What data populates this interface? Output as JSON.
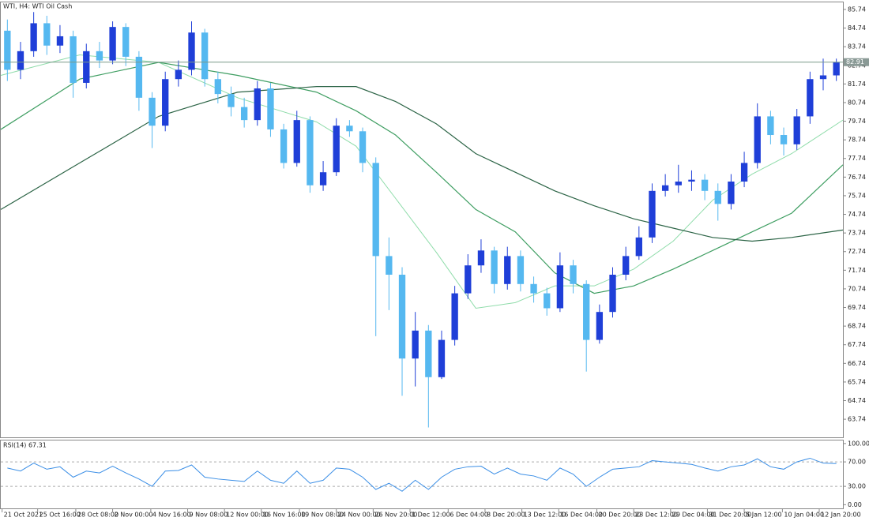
{
  "chart_data": [
    {
      "type": "candlestick",
      "title": "WTI, H4:  WTI Oil Cash",
      "open": [
        84.6,
        82.5,
        83.5,
        85.0,
        83.8,
        84.3,
        81.8,
        83.5,
        83.0,
        84.8,
        83.2,
        81.0,
        79.5,
        82.0,
        82.5,
        84.5,
        82.0,
        81.2,
        80.5,
        79.8,
        81.5,
        79.3,
        77.5,
        79.8,
        76.3,
        77.0,
        79.5,
        79.2,
        77.5,
        72.5,
        71.5,
        67.0,
        68.5,
        66.0,
        68.0,
        70.5,
        72.0,
        72.8,
        71.0,
        72.5,
        71.0,
        70.5,
        69.7,
        72.0,
        71.0,
        68.0,
        69.5,
        71.5,
        72.5,
        73.5,
        76.0,
        76.3,
        76.5,
        76.6,
        76.0,
        75.3,
        76.5,
        77.5,
        80.0,
        79.0,
        78.5,
        80.0,
        82.0,
        82.2
      ],
      "high": [
        85.2,
        84.0,
        85.6,
        85.4,
        84.9,
        84.6,
        83.9,
        84.0,
        85.1,
        85.0,
        83.5,
        81.3,
        82.4,
        83.0,
        85.1,
        84.7,
        82.4,
        81.6,
        81.0,
        81.9,
        81.8,
        79.6,
        80.3,
        80.0,
        77.6,
        79.9,
        79.8,
        79.4,
        77.8,
        73.5,
        71.9,
        69.5,
        68.8,
        68.5,
        70.9,
        72.6,
        73.4,
        73.0,
        73.0,
        72.8,
        71.4,
        70.8,
        72.7,
        72.3,
        71.2,
        69.9,
        71.9,
        73.0,
        74.1,
        76.4,
        76.9,
        77.4,
        77.1,
        76.9,
        76.4,
        76.9,
        78.1,
        80.7,
        80.3,
        79.4,
        80.4,
        82.4,
        83.1,
        83.1
      ],
      "low": [
        81.9,
        82.0,
        83.2,
        83.3,
        83.4,
        81.0,
        81.5,
        82.6,
        82.8,
        82.7,
        80.3,
        78.3,
        79.2,
        81.6,
        82.2,
        81.6,
        80.7,
        80.0,
        79.4,
        79.5,
        78.9,
        77.2,
        77.3,
        75.9,
        76.0,
        76.8,
        78.9,
        77.0,
        68.2,
        69.6,
        65.0,
        65.5,
        63.3,
        65.9,
        67.7,
        70.2,
        71.6,
        70.5,
        70.7,
        70.6,
        70.0,
        69.3,
        69.5,
        70.5,
        66.3,
        67.8,
        69.2,
        71.2,
        72.3,
        73.2,
        75.7,
        75.9,
        76.0,
        75.5,
        74.4,
        75.0,
        76.2,
        77.2,
        78.5,
        77.9,
        78.2,
        79.6,
        81.4,
        81.9
      ],
      "close": [
        82.5,
        83.5,
        85.0,
        83.8,
        84.3,
        81.8,
        83.5,
        83.0,
        84.8,
        83.2,
        81.0,
        79.5,
        82.0,
        82.5,
        84.5,
        82.0,
        81.2,
        80.5,
        79.8,
        81.5,
        79.3,
        77.5,
        79.8,
        76.3,
        77.0,
        79.5,
        79.2,
        77.5,
        72.5,
        71.5,
        67.0,
        68.5,
        66.0,
        68.0,
        70.5,
        72.0,
        72.8,
        71.0,
        72.5,
        71.0,
        70.5,
        69.7,
        72.0,
        71.0,
        68.0,
        69.5,
        71.5,
        72.5,
        73.5,
        76.0,
        76.3,
        76.5,
        76.6,
        76.0,
        75.3,
        76.5,
        77.5,
        80.0,
        79.0,
        78.5,
        80.0,
        82.0,
        82.2,
        82.9
      ],
      "up_color": "#1f3fd8",
      "down_color": "#55b8f0",
      "series": [
        {
          "color": "#8fdcaa",
          "x": [
            0,
            6,
            12,
            18,
            24,
            27,
            30,
            33.1,
            36.1,
            39.1,
            42.1,
            45.1,
            48.1,
            51.1,
            54.1,
            57.1,
            60.1,
            64
          ],
          "values": [
            82.2,
            83.3,
            82.9,
            81.0,
            79.7,
            78.4,
            75.6,
            72.7,
            69.7,
            70.0,
            70.9,
            70.9,
            71.8,
            73.3,
            75.5,
            76.9,
            78.0,
            79.8
          ]
        },
        {
          "color": "#3f9e62",
          "x": [
            0,
            6,
            12,
            18,
            24,
            27,
            30,
            33.1,
            36.1,
            39.1,
            42.1,
            45.1,
            48.1,
            51.1,
            54.1,
            57.1,
            60.1,
            64
          ],
          "values": [
            79.3,
            82.0,
            82.9,
            82.2,
            81.3,
            80.3,
            79.0,
            77.0,
            75.0,
            73.8,
            71.6,
            70.5,
            70.9,
            71.8,
            72.8,
            73.8,
            74.8,
            77.4
          ]
        },
        {
          "color": "#2c6446",
          "x": [
            0,
            6,
            12,
            18,
            24,
            27,
            30,
            33.1,
            36.1,
            39.1,
            42.1,
            45.1,
            48.1,
            51.1,
            54.1,
            57.1,
            60.1,
            64
          ],
          "values": [
            75.0,
            77.5,
            80.0,
            81.3,
            81.6,
            81.6,
            80.8,
            79.6,
            78.0,
            77.0,
            76.0,
            75.2,
            74.5,
            74.0,
            73.5,
            73.3,
            73.5,
            73.9
          ]
        }
      ],
      "bid": 82.91,
      "xlim": [
        0,
        64
      ],
      "ylim": [
        62.77,
        86.12
      ],
      "yticks": [
        85.74,
        84.74,
        83.74,
        82.74,
        81.74,
        80.74,
        79.74,
        78.74,
        77.74,
        76.74,
        75.74,
        74.74,
        73.74,
        72.74,
        71.74,
        70.74,
        69.74,
        68.74,
        67.74,
        66.74,
        65.74,
        64.74,
        63.74
      ],
      "xticks": [
        {
          "value": 0.1,
          "label": "21 Oct 2021"
        },
        {
          "value": 2.8,
          "label": "25 Oct 16:00"
        },
        {
          "value": 5.7,
          "label": "28 Oct 08:00"
        },
        {
          "value": 8.5,
          "label": "2 Nov 00:00"
        },
        {
          "value": 11.4,
          "label": "4 Nov 16:00"
        },
        {
          "value": 14.2,
          "label": "9 Nov 08:00"
        },
        {
          "value": 17.0,
          "label": "12 Nov 00:00"
        },
        {
          "value": 19.8,
          "label": "16 Nov 16:00"
        },
        {
          "value": 22.7,
          "label": "19 Nov 08:00"
        },
        {
          "value": 25.5,
          "label": "24 Nov 00:00"
        },
        {
          "value": 28.3,
          "label": "26 Nov 20:00"
        },
        {
          "value": 31.1,
          "label": "1 Dec 12:00"
        },
        {
          "value": 34.0,
          "label": "6 Dec 04:00"
        },
        {
          "value": 36.8,
          "label": "8 Dec 20:00"
        },
        {
          "value": 39.6,
          "label": "13 Dec 12:00"
        },
        {
          "value": 42.4,
          "label": "16 Dec 04:00"
        },
        {
          "value": 45.3,
          "label": "20 Dec 20:00"
        },
        {
          "value": 48.1,
          "label": "23 Dec 12:00"
        },
        {
          "value": 50.9,
          "label": "29 Dec 04:00"
        },
        {
          "value": 53.7,
          "label": "31 Dec 20:00"
        },
        {
          "value": 56.5,
          "label": "5 Jan 12:00"
        },
        {
          "value": 59.4,
          "label": "10 Jan 04:00"
        },
        {
          "value": 62.2,
          "label": "12 Jan 20:00"
        }
      ]
    },
    {
      "type": "line",
      "title": "RSI(14) 67.31",
      "color": "#3a8ee6",
      "values": [
        60,
        55,
        68,
        58,
        62,
        45,
        55,
        52,
        63,
        52,
        42,
        30,
        55,
        56,
        65,
        45,
        42,
        40,
        38,
        55,
        40,
        35,
        55,
        35,
        40,
        60,
        58,
        45,
        25,
        35,
        22,
        40,
        25,
        45,
        58,
        62,
        63,
        50,
        60,
        50,
        47,
        40,
        60,
        50,
        30,
        45,
        58,
        60,
        62,
        72,
        70,
        68,
        66,
        60,
        55,
        62,
        65,
        75,
        62,
        58,
        70,
        76,
        68,
        67.31
      ],
      "ylim": [
        -6,
        105
      ],
      "yticks": [
        {
          "value": 100,
          "label": "100.00"
        },
        {
          "value": 70,
          "label": "70.00"
        },
        {
          "value": 30,
          "label": "30.00"
        },
        {
          "value": 0,
          "label": "0.00"
        }
      ],
      "levels": [
        70,
        30
      ]
    }
  ]
}
